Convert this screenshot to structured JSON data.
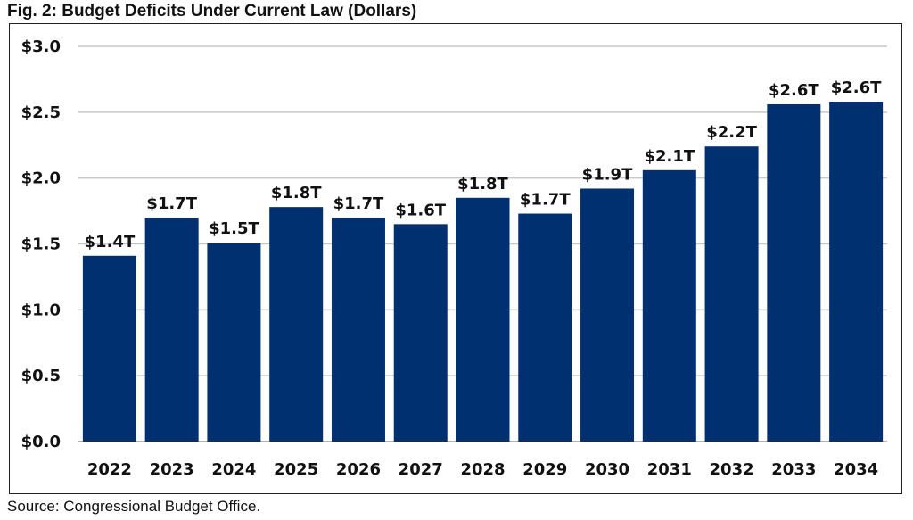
{
  "figure": {
    "title": "Fig. 2: Budget Deficits Under Current Law (Dollars)",
    "source": "Source: Congressional Budget Office."
  },
  "chart_data": {
    "type": "bar",
    "title": "Fig. 2: Budget Deficits Under Current Law (Dollars)",
    "xlabel": "",
    "ylabel": "",
    "categories": [
      "2022",
      "2023",
      "2024",
      "2025",
      "2026",
      "2027",
      "2028",
      "2029",
      "2030",
      "2031",
      "2032",
      "2033",
      "2034"
    ],
    "values": [
      1.41,
      1.7,
      1.51,
      1.78,
      1.7,
      1.65,
      1.85,
      1.73,
      1.92,
      2.06,
      2.24,
      2.56,
      2.58
    ],
    "data_labels": [
      "$1.4T",
      "$1.7T",
      "$1.5T",
      "$1.8T",
      "$1.7T",
      "$1.6T",
      "$1.8T",
      "$1.7T",
      "$1.9T",
      "$2.1T",
      "$2.2T",
      "$2.6T",
      "$2.6T"
    ],
    "ylim": [
      0,
      3.0
    ],
    "yticks": [
      0,
      0.5,
      1.0,
      1.5,
      2.0,
      2.5,
      3.0
    ],
    "ytick_labels": [
      "$0.0",
      "$0.5",
      "$1.0",
      "$1.5",
      "$2.0",
      "$2.5",
      "$3.0"
    ],
    "grid": true,
    "legend": "none",
    "bar_color": "#003070",
    "grid_color": "#c8c8c8"
  }
}
